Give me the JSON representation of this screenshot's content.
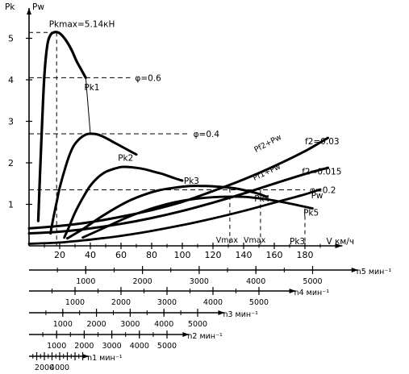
{
  "chart_data": {
    "type": "line",
    "y_axis_titles": [
      "Pk",
      "Pw"
    ],
    "x_axis_title": "V  км/ч",
    "x_range": [
      0,
      195
    ],
    "y_range": [
      0,
      5.6
    ],
    "x_ticks": [
      20,
      40,
      60,
      80,
      100,
      120,
      140,
      160,
      180
    ],
    "x_tick_labels": [
      "20",
      "40",
      "60",
      "80",
      "100",
      "120",
      "140",
      "160",
      "180"
    ],
    "y_ticks": [
      1,
      2,
      3,
      4,
      5
    ],
    "y_tick_labels": [
      "1",
      "2",
      "3",
      "4",
      "5"
    ],
    "series": [
      {
        "name": "Pk1",
        "x": [
          6,
          8,
          10,
          12,
          14,
          16,
          18,
          20,
          22,
          25,
          28,
          31,
          34,
          37
        ],
        "y": [
          0.6,
          2.5,
          4.1,
          4.85,
          5.08,
          5.14,
          5.15,
          5.12,
          5.05,
          4.9,
          4.7,
          4.45,
          4.25,
          4.05
        ]
      },
      {
        "name": "Pk2",
        "x": [
          14,
          16,
          18,
          20,
          23,
          26,
          29,
          33,
          37,
          40,
          45,
          50,
          55,
          60,
          65,
          70
        ],
        "y": [
          0.3,
          0.7,
          1.05,
          1.4,
          1.8,
          2.15,
          2.4,
          2.58,
          2.68,
          2.7,
          2.68,
          2.6,
          2.5,
          2.4,
          2.3,
          2.2
        ]
      },
      {
        "name": "Pk3",
        "x": [
          23,
          26,
          30,
          35,
          40,
          45,
          50,
          55,
          60,
          65,
          70,
          76,
          82,
          88,
          94,
          100
        ],
        "y": [
          0.2,
          0.45,
          0.8,
          1.15,
          1.45,
          1.65,
          1.78,
          1.85,
          1.9,
          1.9,
          1.88,
          1.84,
          1.78,
          1.72,
          1.64,
          1.57
        ]
      },
      {
        "name": "Pk4",
        "x": [
          25,
          35,
          45,
          55,
          65,
          75,
          85,
          95,
          105,
          115,
          125,
          135,
          145,
          150,
          155
        ],
        "y": [
          0.18,
          0.4,
          0.65,
          0.88,
          1.08,
          1.23,
          1.34,
          1.4,
          1.44,
          1.44,
          1.42,
          1.38,
          1.3,
          1.25,
          1.18
        ]
      },
      {
        "name": "Pk5",
        "x": [
          35,
          50,
          65,
          80,
          95,
          110,
          125,
          140,
          155,
          170,
          185
        ],
        "y": [
          0.2,
          0.45,
          0.7,
          0.9,
          1.05,
          1.14,
          1.18,
          1.18,
          1.12,
          1.02,
          0.9
        ]
      },
      {
        "name": "Pw",
        "x": [
          0,
          20,
          40,
          60,
          80,
          100,
          120,
          140,
          160,
          180,
          190
        ],
        "y": [
          0.05,
          0.08,
          0.15,
          0.24,
          0.36,
          0.5,
          0.66,
          0.84,
          1.04,
          1.24,
          1.36
        ]
      },
      {
        "name": "Pf1+Pw",
        "x": [
          0,
          20,
          40,
          60,
          80,
          100,
          120,
          140,
          160,
          180,
          195
        ],
        "y": [
          0.3,
          0.34,
          0.42,
          0.53,
          0.67,
          0.84,
          1.04,
          1.26,
          1.5,
          1.73,
          1.88
        ]
      },
      {
        "name": "Pf2+Pw",
        "x": [
          0,
          20,
          40,
          60,
          80,
          100,
          120,
          140,
          160,
          180,
          195
        ],
        "y": [
          0.42,
          0.48,
          0.57,
          0.7,
          0.86,
          1.06,
          1.32,
          1.6,
          1.92,
          2.28,
          2.6
        ]
      }
    ],
    "series_labels": [
      {
        "text": "Pk1",
        "at": [
          36,
          3.75
        ]
      },
      {
        "text": "Pk2",
        "at": [
          58,
          2.05
        ]
      },
      {
        "text": "Pk3",
        "at": [
          101,
          1.5
        ]
      },
      {
        "text": "Pk4",
        "at": [
          147,
          1.07
        ]
      },
      {
        "text": "Pk5",
        "at": [
          179,
          0.73
        ]
      },
      {
        "text": "Pw",
        "at": [
          184,
          1.15
        ]
      },
      {
        "text": "Pf1+Pw",
        "at": [
          147,
          1.57
        ],
        "angle": -25
      },
      {
        "text": "Pf2+Pw",
        "at": [
          148,
          2.25
        ],
        "angle": -28
      }
    ],
    "reference_lines": [
      {
        "label": "φ=0.6",
        "y": 4.05,
        "x_from": 0,
        "x_to": 66
      },
      {
        "label": "φ=0.4",
        "y": 2.7,
        "x_from": 0,
        "x_to": 104
      },
      {
        "label": "φ=0.2",
        "y": 1.35,
        "x_from": 0,
        "x_to": 180
      }
    ],
    "annotations": [
      {
        "text": "Pkmax=5.14кН",
        "at": [
          13,
          5.27
        ]
      },
      {
        "text": "f2=0.03",
        "at": [
          180,
          2.45
        ]
      },
      {
        "text": "f2=0.015",
        "at": [
          178,
          1.72
        ]
      },
      {
        "text": "Vmax",
        "at": [
          122,
          0.08
        ]
      },
      {
        "text": "Vmax",
        "at": [
          140,
          0.08
        ]
      },
      {
        "text": "Pk3",
        "at": [
          170,
          0.04
        ]
      }
    ],
    "peak_marker": {
      "x": 18,
      "y": 5.14
    },
    "vmax_markers": [
      {
        "x": 131,
        "y": 1.38
      },
      {
        "x": 151,
        "y": 1.35
      }
    ],
    "envelope_connector": {
      "x": [
        37,
        40
      ],
      "y": [
        4.05,
        2.7
      ]
    },
    "rpm_scales": [
      {
        "unit": "n5 мин⁻¹",
        "start_x": 0,
        "ticks_x": [
          37,
          74,
          111,
          148,
          185
        ],
        "labels": [
          "1000",
          "2000",
          "3000",
          "4000",
          "5000"
        ],
        "minor_step": 18.5
      },
      {
        "unit": "n4 мин⁻¹",
        "start_x": 0,
        "ticks_x": [
          30,
          60,
          90,
          120,
          150
        ],
        "labels": [
          "1000",
          "2000",
          "3000",
          "4000",
          "5000"
        ],
        "minor_step": 15
      },
      {
        "unit": "n3 мин⁻¹",
        "start_x": 0,
        "ticks_x": [
          22,
          44,
          66,
          88,
          110
        ],
        "labels": [
          "1000",
          "2000",
          "3000",
          "4000",
          "5000"
        ],
        "minor_step": 11
      },
      {
        "unit": "n2 мин⁻¹",
        "start_x": 0,
        "ticks_x": [
          18,
          36,
          54,
          72,
          90
        ],
        "labels": [
          "1000",
          "2000",
          "3000",
          "4000",
          "5000"
        ],
        "minor_step": 9
      },
      {
        "unit": "n1 мин⁻¹",
        "start_x": 0,
        "ticks_x": [
          5,
          10,
          15,
          20,
          25,
          30,
          35
        ],
        "labels": [
          "",
          "2000",
          "",
          "4000",
          "",
          "",
          ""
        ],
        "minor_step": 2.5
      }
    ]
  }
}
